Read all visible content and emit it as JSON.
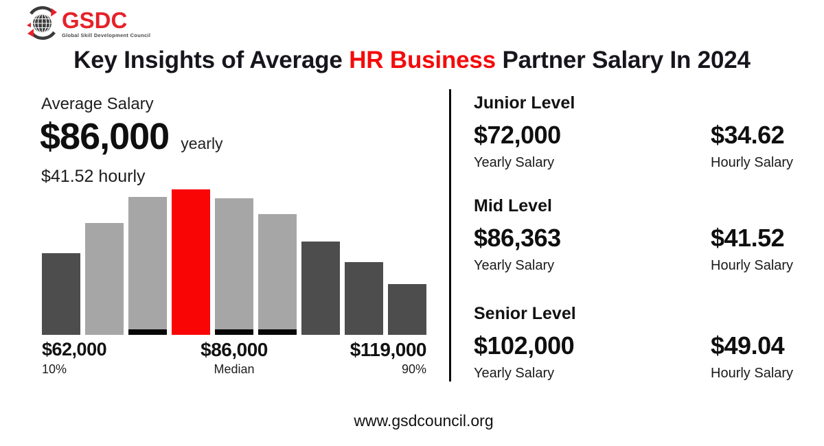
{
  "brand": {
    "name": "GSDC",
    "tagline": "Global Skill Development Council",
    "brand_red": "#e62129"
  },
  "title": {
    "prefix": "Key Insights of Average ",
    "highlight": "HR Business",
    "suffix": " Partner Salary In 2024",
    "highlight_color": "#f40b0b"
  },
  "average_salary": {
    "label": "Average Salary",
    "yearly_value": "$86,000",
    "yearly_unit": "yearly",
    "hourly_text": "$41.52 hourly"
  },
  "chart_data": {
    "type": "bar",
    "description": "Salary distribution histogram from 10th percentile to 90th percentile",
    "relative_heights": [
      56,
      77,
      95,
      100,
      94,
      83,
      64,
      50,
      35
    ],
    "bar_colors": [
      "#4d4d4d",
      "#a6a6a6",
      "#a6a6a6",
      "#f90505",
      "#a6a6a6",
      "#a6a6a6",
      "#4d4d4d",
      "#4d4d4d",
      "#4d4d4d"
    ],
    "highlight_index": 3,
    "black_base_bar_indexes": [
      2,
      4,
      5
    ],
    "x_annotations": [
      {
        "value": "$62,000",
        "label": "10%",
        "position": "left"
      },
      {
        "value": "$86,000",
        "label": "Median",
        "position": "center"
      },
      {
        "value": "$119,000",
        "label": "90%",
        "position": "right"
      }
    ],
    "grid": false,
    "legend": false,
    "ylim": [
      0,
      100
    ]
  },
  "levels": [
    {
      "name": "Junior Level",
      "yearly_value": "$72,000",
      "yearly_label": "Yearly Salary",
      "hourly_value": "$34.62",
      "hourly_label": "Hourly Salary"
    },
    {
      "name": "Mid Level",
      "yearly_value": "$86,363",
      "yearly_label": "Yearly Salary",
      "hourly_value": "$41.52",
      "hourly_label": "Hourly Salary"
    },
    {
      "name": "Senior Level",
      "yearly_value": "$102,000",
      "yearly_label": "Yearly Salary",
      "hourly_value": "$49.04",
      "hourly_label": "Hourly Salary"
    }
  ],
  "footer": {
    "website": "www.gsdcouncil.org"
  },
  "colors": {
    "dark_bar": "#4d4d4d",
    "light_bar": "#a6a6a6",
    "accent_red": "#f90505",
    "divider": "#0a0a0a",
    "text": "#121212"
  }
}
